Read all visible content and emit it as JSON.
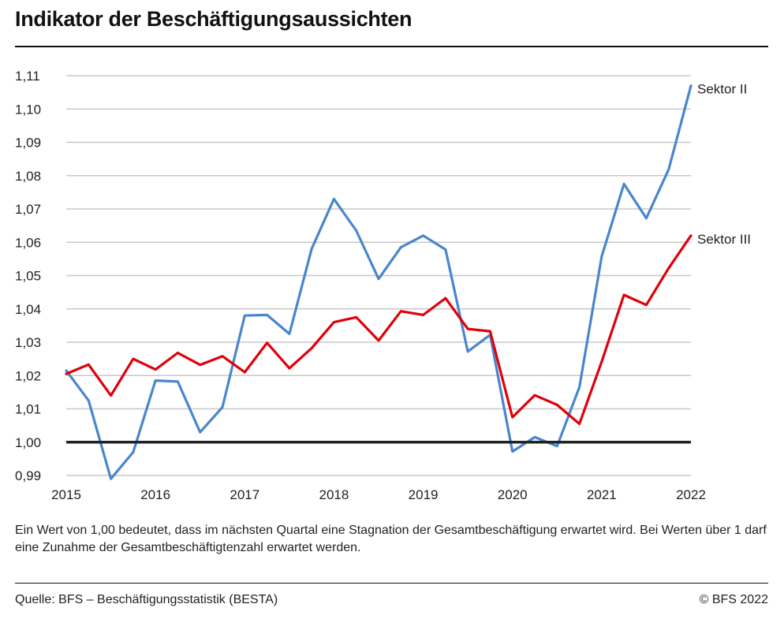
{
  "title": "Indikator der Beschäftigungsaussichten",
  "note": "Ein Wert von 1,00 bedeutet, dass im nächsten Quartal eine Stagnation der Gesamtbeschäftigung erwartet wird. Bei Werten über 1 darf eine Zunahme der Gesamtbeschäftigtenzahl erwartet werden.",
  "source": "Quelle: BFS – Beschäftigungsstatistik (BESTA)",
  "copyright": "© BFS 2022",
  "colors": {
    "sektor2": "#4a86cc",
    "sektor3": "#e0000b",
    "grid": "#c8c8c8",
    "baseline": "#222222"
  },
  "chart_data": {
    "type": "line",
    "title": "Indikator der Beschäftigungsaussichten",
    "xlabel": "",
    "ylabel": "",
    "ylim": [
      0.99,
      1.11
    ],
    "yticks": [
      "0,99",
      "1,00",
      "1,01",
      "1,02",
      "1,03",
      "1,04",
      "1,05",
      "1,06",
      "1,07",
      "1,08",
      "1,09",
      "1,10",
      "1,11"
    ],
    "xticks": [
      "2015",
      "2016",
      "2017",
      "2018",
      "2019",
      "2020",
      "2021",
      "2022"
    ],
    "reference_line": 1.0,
    "grid": true,
    "legend": "inline labels at line ends (right)",
    "x": [
      2015.0,
      2015.25,
      2015.5,
      2015.75,
      2016.0,
      2016.25,
      2016.5,
      2016.75,
      2017.0,
      2017.25,
      2017.5,
      2017.75,
      2018.0,
      2018.25,
      2018.5,
      2018.75,
      2019.0,
      2019.25,
      2019.5,
      2019.75,
      2020.0,
      2020.25,
      2020.5,
      2020.75,
      2021.0,
      2021.25,
      2021.5,
      2021.75,
      2022.0
    ],
    "series": [
      {
        "name": "Sektor II",
        "color": "#4a86cc",
        "values": [
          1.0215,
          1.0125,
          0.989,
          0.997,
          1.0185,
          1.0182,
          1.003,
          1.0105,
          1.038,
          1.0382,
          1.0325,
          1.058,
          1.073,
          1.0635,
          1.049,
          1.0585,
          1.062,
          1.0578,
          1.0272,
          1.0322,
          0.9972,
          1.0015,
          0.9988,
          1.0165,
          1.0558,
          1.0775,
          1.0672,
          1.0818,
          1.107
        ]
      },
      {
        "name": "Sektor III",
        "color": "#e0000b",
        "values": [
          1.0205,
          1.0233,
          1.014,
          1.025,
          1.0218,
          1.0268,
          1.0232,
          1.0258,
          1.021,
          1.0298,
          1.0222,
          1.0282,
          1.036,
          1.0375,
          1.0305,
          1.0393,
          1.0382,
          1.0432,
          1.034,
          1.0333,
          1.0075,
          1.0141,
          1.0112,
          1.0055,
          1.0242,
          1.0442,
          1.0412,
          1.0522,
          1.062
        ]
      }
    ]
  }
}
